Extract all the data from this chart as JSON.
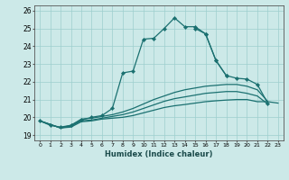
{
  "xlabel": "Humidex (Indice chaleur)",
  "xlim": [
    -0.5,
    23.5
  ],
  "ylim": [
    18.7,
    26.3
  ],
  "xticks": [
    0,
    1,
    2,
    3,
    4,
    5,
    6,
    7,
    8,
    9,
    10,
    11,
    12,
    13,
    14,
    15,
    16,
    17,
    18,
    19,
    20,
    21,
    22,
    23
  ],
  "yticks": [
    19,
    20,
    21,
    22,
    23,
    24,
    25,
    26
  ],
  "background_color": "#cce9e8",
  "grid_color": "#9ecece",
  "line_color": "#1a7070",
  "lines": [
    {
      "x": [
        0,
        1,
        2,
        3,
        4,
        5,
        6,
        7,
        8,
        9,
        10,
        11,
        12,
        13,
        14,
        15,
        16,
        17,
        18
      ],
      "y": [
        19.8,
        19.55,
        19.45,
        19.55,
        19.85,
        20.0,
        20.1,
        20.5,
        22.5,
        22.6,
        24.4,
        24.45,
        25.0,
        25.6,
        25.1,
        25.1,
        24.7,
        23.2,
        22.35
      ],
      "marker": true
    },
    {
      "x": [
        15,
        16,
        17,
        18,
        19,
        20,
        21,
        22
      ],
      "y": [
        25.0,
        24.7,
        23.2,
        22.35,
        22.2,
        22.15,
        21.85,
        20.8
      ],
      "marker": true
    },
    {
      "x": [
        0,
        2,
        3,
        4,
        5,
        6,
        7,
        8,
        9,
        10,
        11,
        12,
        13,
        14,
        15,
        16,
        17,
        18,
        19,
        20,
        21,
        22
      ],
      "y": [
        19.8,
        19.4,
        19.55,
        19.9,
        19.95,
        20.05,
        20.15,
        20.3,
        20.5,
        20.75,
        21.0,
        21.2,
        21.4,
        21.55,
        21.65,
        21.75,
        21.8,
        21.85,
        21.85,
        21.75,
        21.55,
        20.9
      ],
      "marker": false
    },
    {
      "x": [
        0,
        2,
        3,
        4,
        5,
        6,
        7,
        8,
        9,
        10,
        11,
        12,
        13,
        14,
        15,
        16,
        17,
        18,
        19,
        20,
        21,
        22
      ],
      "y": [
        19.8,
        19.4,
        19.5,
        19.8,
        19.85,
        19.95,
        20.05,
        20.15,
        20.3,
        20.5,
        20.7,
        20.9,
        21.05,
        21.15,
        21.25,
        21.35,
        21.4,
        21.45,
        21.45,
        21.35,
        21.2,
        20.75
      ],
      "marker": false
    },
    {
      "x": [
        0,
        2,
        3,
        4,
        5,
        6,
        7,
        8,
        9,
        10,
        11,
        12,
        13,
        14,
        15,
        16,
        17,
        18,
        19,
        20,
        21,
        22,
        23
      ],
      "y": [
        19.8,
        19.4,
        19.45,
        19.75,
        19.8,
        19.9,
        19.95,
        20.0,
        20.1,
        20.25,
        20.4,
        20.55,
        20.65,
        20.72,
        20.8,
        20.88,
        20.93,
        20.97,
        21.0,
        21.0,
        20.88,
        20.88,
        20.8
      ],
      "marker": false
    }
  ]
}
